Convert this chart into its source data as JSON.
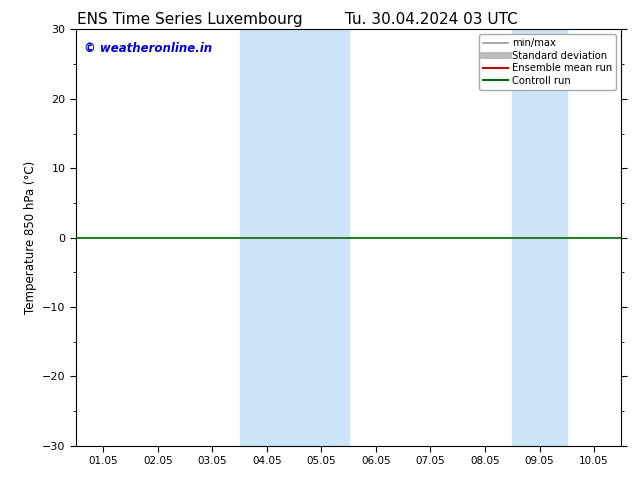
{
  "title": "ENS Time Series Luxembourg",
  "title2": "Tu. 30.04.2024 03 UTC",
  "ylabel": "Temperature 850 hPa (°C)",
  "ylim": [
    -30,
    30
  ],
  "yticks": [
    -30,
    -20,
    -10,
    0,
    10,
    20,
    30
  ],
  "xtick_labels": [
    "01.05",
    "02.05",
    "03.05",
    "04.05",
    "05.05",
    "06.05",
    "07.05",
    "08.05",
    "09.05",
    "10.05"
  ],
  "watermark": "© weatheronline.in",
  "watermark_color": "#0000dd",
  "background_color": "#ffffff",
  "shaded_regions": [
    {
      "x_start": 3.5,
      "x_end": 5.5
    },
    {
      "x_start": 8.5,
      "x_end": 9.5
    }
  ],
  "shaded_color": "#cce4f5",
  "zero_line_color": "#006600",
  "legend_items": [
    {
      "label": "min/max",
      "color": "#999999",
      "lw": 1.2
    },
    {
      "label": "Standard deviation",
      "color": "#bbbbbb",
      "lw": 5
    },
    {
      "label": "Ensemble mean run",
      "color": "#cc0000",
      "lw": 1.5
    },
    {
      "label": "Controll run",
      "color": "#006600",
      "lw": 1.5
    }
  ],
  "xlim": [
    0.5,
    10.5
  ],
  "x_tick_positions": [
    1,
    2,
    3,
    4,
    5,
    6,
    7,
    8,
    9,
    10
  ]
}
